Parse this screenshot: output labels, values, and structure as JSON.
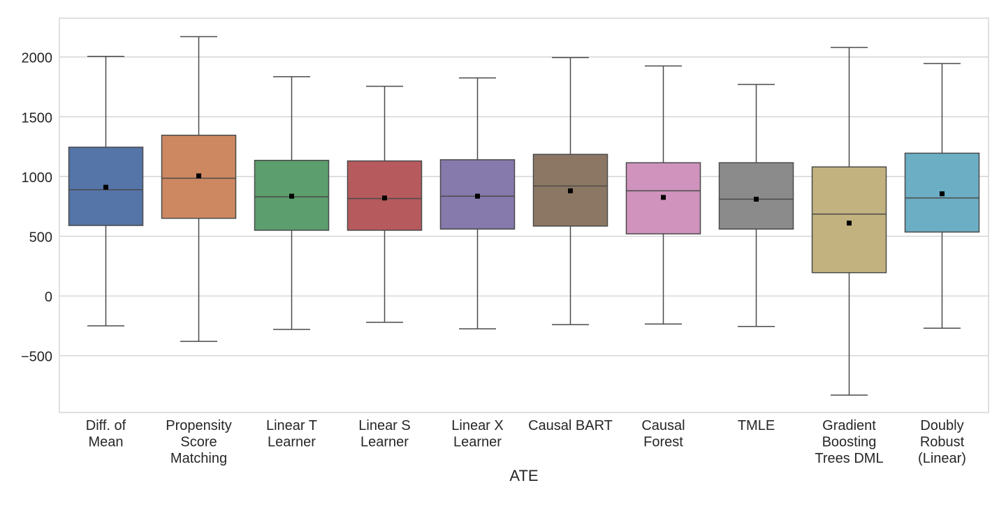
{
  "chart_data": {
    "type": "box",
    "title": "",
    "xlabel": "ATE",
    "ylabel": "",
    "ylim": [
      -975,
      2325
    ],
    "yticks": [
      -500,
      0,
      500,
      1000,
      1500,
      2000
    ],
    "ytick_labels": [
      "−500",
      "0",
      "500",
      "1000",
      "1500",
      "2000"
    ],
    "grid": "horizontal",
    "legend": "none",
    "mean_marker": "square",
    "categories": [
      [
        "Diff. of",
        "Mean"
      ],
      [
        "Propensity",
        "Score",
        "Matching"
      ],
      [
        "Linear T",
        "Learner"
      ],
      [
        "Linear S",
        "Learner"
      ],
      [
        "Linear X",
        "Learner"
      ],
      [
        "Causal BART"
      ],
      [
        "Causal",
        "Forest"
      ],
      [
        "TMLE"
      ],
      [
        "Gradient",
        "Boosting",
        "Trees DML"
      ],
      [
        "Doubly",
        "Robust",
        "(Linear)"
      ]
    ],
    "boxes": [
      {
        "whisker_low": -250,
        "q1": 590,
        "median": 890,
        "q3": 1245,
        "whisker_high": 2005,
        "mean": 910,
        "color": "#5574a8"
      },
      {
        "whisker_low": -380,
        "q1": 650,
        "median": 985,
        "q3": 1345,
        "whisker_high": 2170,
        "mean": 1005,
        "color": "#cd8861"
      },
      {
        "whisker_low": -280,
        "q1": 550,
        "median": 830,
        "q3": 1135,
        "whisker_high": 1835,
        "mean": 835,
        "color": "#5c9e6d"
      },
      {
        "whisker_low": -220,
        "q1": 550,
        "median": 815,
        "q3": 1130,
        "whisker_high": 1755,
        "mean": 820,
        "color": "#b65a5e"
      },
      {
        "whisker_low": -275,
        "q1": 560,
        "median": 835,
        "q3": 1140,
        "whisker_high": 1825,
        "mean": 835,
        "color": "#8679ac"
      },
      {
        "whisker_low": -240,
        "q1": 585,
        "median": 920,
        "q3": 1185,
        "whisker_high": 1995,
        "mean": 880,
        "color": "#8c7764"
      },
      {
        "whisker_low": -235,
        "q1": 520,
        "median": 880,
        "q3": 1115,
        "whisker_high": 1925,
        "mean": 825,
        "color": "#cf93bd"
      },
      {
        "whisker_low": -255,
        "q1": 560,
        "median": 810,
        "q3": 1115,
        "whisker_high": 1770,
        "mean": 810,
        "color": "#8b8b8b"
      },
      {
        "whisker_low": -830,
        "q1": 195,
        "median": 685,
        "q3": 1080,
        "whisker_high": 2080,
        "mean": 610,
        "color": "#c2b27f"
      },
      {
        "whisker_low": -270,
        "q1": 535,
        "median": 820,
        "q3": 1195,
        "whisker_high": 1945,
        "mean": 855,
        "color": "#6caec4"
      }
    ]
  }
}
